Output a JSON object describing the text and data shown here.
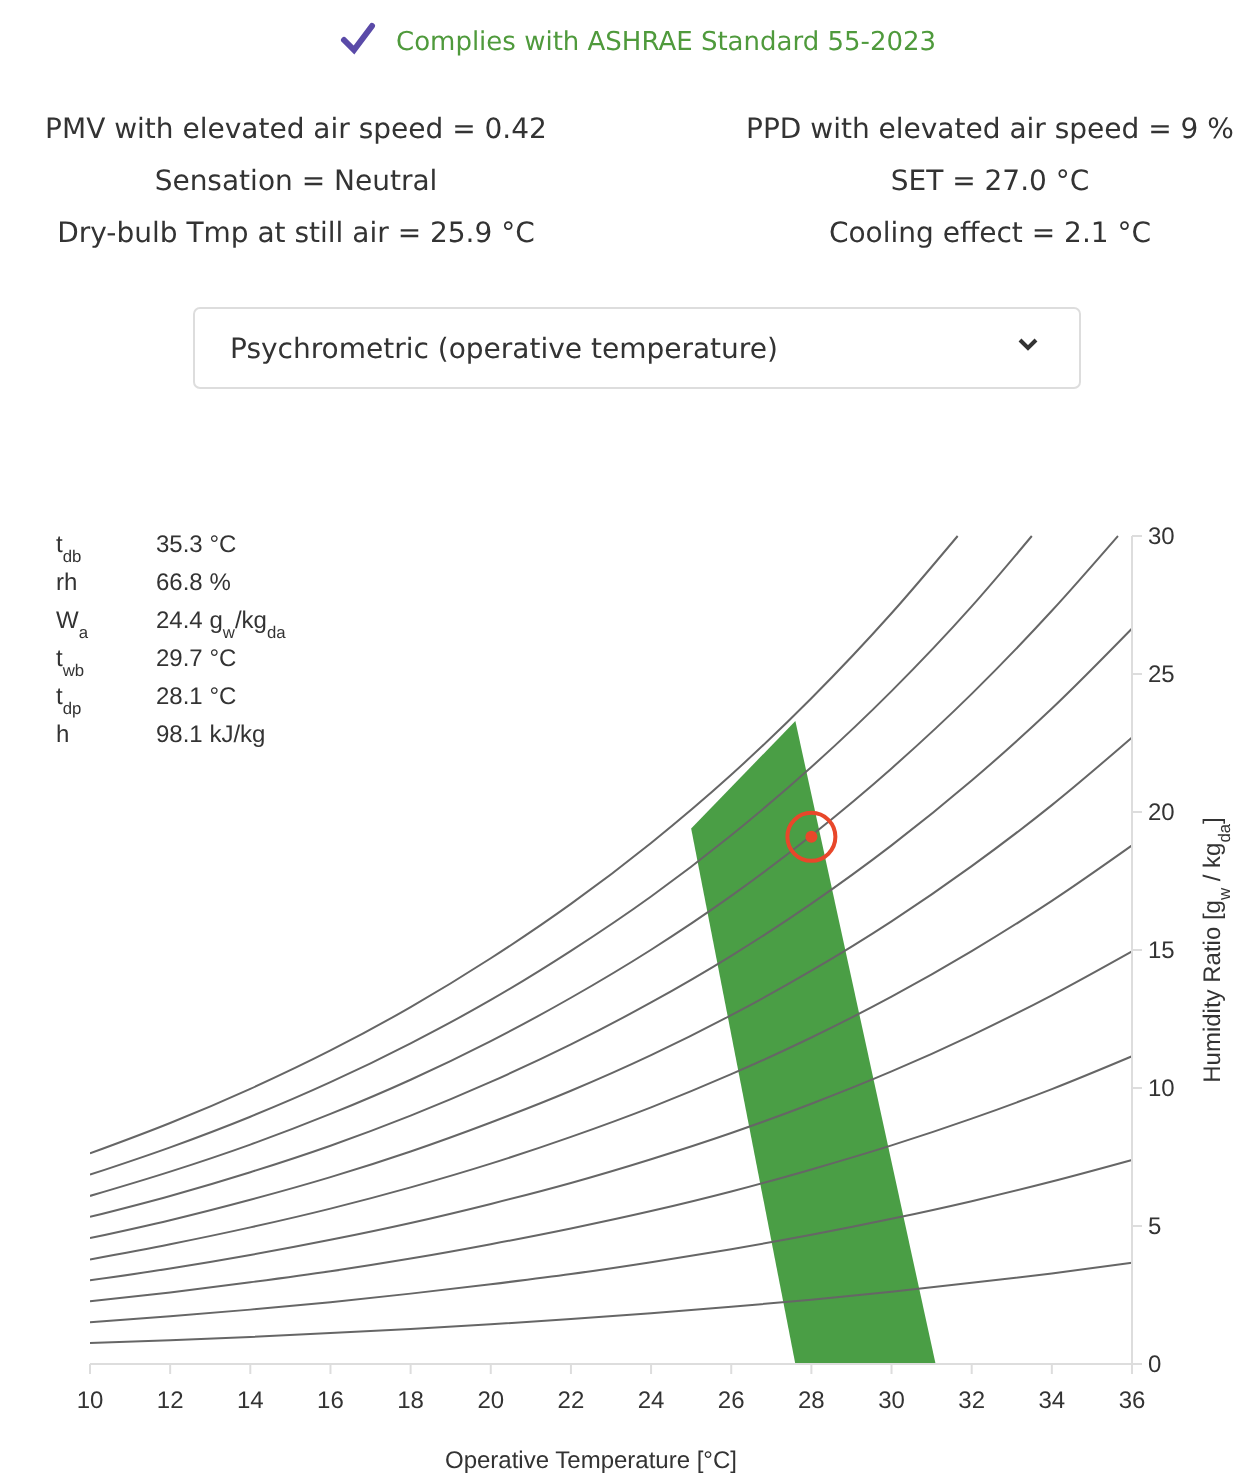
{
  "chart_data": {
    "type": "line",
    "title": "Complies with ASHRAE Standard 55-2023",
    "xlabel": "Operative Temperature [°C]",
    "ylabel": "Humidity Ratio [g$_{w}$ / kg$_{da}$]",
    "annotations": [
      "PMV with elevated air speed = 0.42",
      "PPD with elevated air speed = 9 %",
      "Sensation = Neutral",
      "SET = 27.0 °C",
      "Dry-bulb Tmp at still air = 25.9 °C",
      "Cooling effect = 2.1 °C",
      "Psychrometric (operative temperature)",
      "t$_{db}$ 35.3 °C",
      "rh 66.8 %",
      "W$_{a}$ 24.4 g$_{w}$/kg$_{da}$",
      "t$_{wb}$ 29.7 °C",
      "t$_{dp}$ 28.1 °C",
      "h 98.1 kJ/kg"
    ],
    "xlim": [
      10,
      36
    ],
    "xticks": [
      10,
      12,
      14,
      16,
      18,
      20,
      22,
      24,
      26,
      28,
      30,
      32,
      34,
      36
    ],
    "ylim": [
      0,
      30
    ],
    "yticks": [
      0,
      5,
      10,
      15,
      20,
      25,
      30
    ],
    "grid": false,
    "marker": "none",
    "line_style": "solid",
    "series": [
      {
        "color": "#666666",
        "x": [
          10,
          12,
          14,
          16,
          18,
          20,
          22,
          24,
          26,
          28,
          30,
          31.65
        ],
        "values": [
          7.63,
          8.73,
          9.97,
          11.36,
          12.93,
          14.7,
          16.67,
          18.88,
          21.35,
          24.12,
          27.2,
          30
        ]
      },
      {
        "color": "#666666",
        "x": [
          10,
          12,
          14,
          16,
          18,
          20,
          22,
          24,
          26,
          28,
          30,
          32,
          33.5
        ],
        "values": [
          6.86,
          7.85,
          8.96,
          10.21,
          11.62,
          13.19,
          14.97,
          16.94,
          19.16,
          21.63,
          24.38,
          27.45,
          30
        ]
      },
      {
        "color": "#666666",
        "x": [
          10,
          12,
          14,
          16,
          18,
          20,
          22,
          24,
          26,
          28,
          30,
          32,
          34,
          35.65
        ],
        "values": [
          6.09,
          6.97,
          7.95,
          9.06,
          10.3,
          11.7,
          13.27,
          15.01,
          16.96,
          19.15,
          21.58,
          24.28,
          27.29,
          30
        ]
      },
      {
        "color": "#666666",
        "x": [
          10,
          12,
          14,
          16,
          18,
          20,
          22,
          24,
          26,
          28,
          30,
          32,
          34,
          36
        ],
        "values": [
          5.33,
          6.09,
          6.95,
          7.91,
          9.0,
          10.22,
          11.58,
          13.1,
          14.79,
          16.68,
          18.79,
          21.14,
          23.75,
          26.65
        ]
      },
      {
        "color": "#666666",
        "x": [
          10,
          12,
          14,
          16,
          18,
          20,
          22,
          24,
          26,
          28,
          30,
          32,
          34,
          36
        ],
        "values": [
          4.56,
          5.21,
          5.95,
          6.77,
          7.7,
          8.75,
          9.9,
          11.19,
          12.64,
          14.25,
          16.04,
          18.04,
          20.25,
          22.7
        ]
      },
      {
        "color": "#666666",
        "x": [
          10,
          12,
          14,
          16,
          18,
          20,
          22,
          24,
          26,
          28,
          30,
          32,
          34,
          36
        ],
        "values": [
          3.79,
          4.34,
          4.95,
          5.63,
          6.4,
          7.26,
          8.23,
          9.3,
          10.5,
          11.83,
          13.31,
          14.96,
          16.78,
          18.79
        ]
      },
      {
        "color": "#666666",
        "x": [
          10,
          12,
          14,
          16,
          18,
          20,
          22,
          24,
          26,
          28,
          30,
          32,
          34,
          36
        ],
        "values": [
          3.03,
          3.46,
          3.95,
          4.5,
          5.11,
          5.8,
          6.56,
          7.42,
          8.37,
          9.43,
          10.6,
          11.91,
          13.36,
          14.95
        ]
      },
      {
        "color": "#666666",
        "x": [
          10,
          12,
          14,
          16,
          18,
          20,
          22,
          24,
          26,
          28,
          30,
          32,
          34,
          36
        ],
        "values": [
          2.27,
          2.59,
          2.96,
          3.36,
          3.82,
          4.34,
          4.91,
          5.54,
          6.25,
          7.05,
          7.92,
          8.89,
          9.96,
          11.15
        ]
      },
      {
        "color": "#666666",
        "x": [
          10,
          12,
          14,
          16,
          18,
          20,
          22,
          24,
          26,
          28,
          30,
          32,
          34,
          36
        ],
        "values": [
          1.51,
          1.73,
          1.97,
          2.24,
          2.55,
          2.89,
          3.26,
          3.69,
          4.16,
          4.68,
          5.26,
          5.9,
          6.61,
          7.39
        ]
      },
      {
        "color": "#666666",
        "x": [
          10,
          12,
          14,
          16,
          18,
          20,
          22,
          24,
          26,
          28,
          30,
          32,
          34,
          36
        ],
        "values": [
          0.76,
          0.86,
          0.98,
          1.12,
          1.27,
          1.44,
          1.63,
          1.84,
          2.07,
          2.33,
          2.62,
          2.94,
          3.28,
          3.67
        ]
      },
      {
        "type": "area",
        "color": "#4a9e45",
        "x": [
          25,
          27.6,
          31.1,
          27.6,
          25
        ],
        "values": [
          19.4,
          23.3,
          0,
          0,
          19.4
        ]
      },
      {
        "type": "scatter",
        "color": "#e8472a",
        "marker": "circle",
        "x": [
          28
        ],
        "values": [
          19.1
        ]
      }
    ]
  }
}
